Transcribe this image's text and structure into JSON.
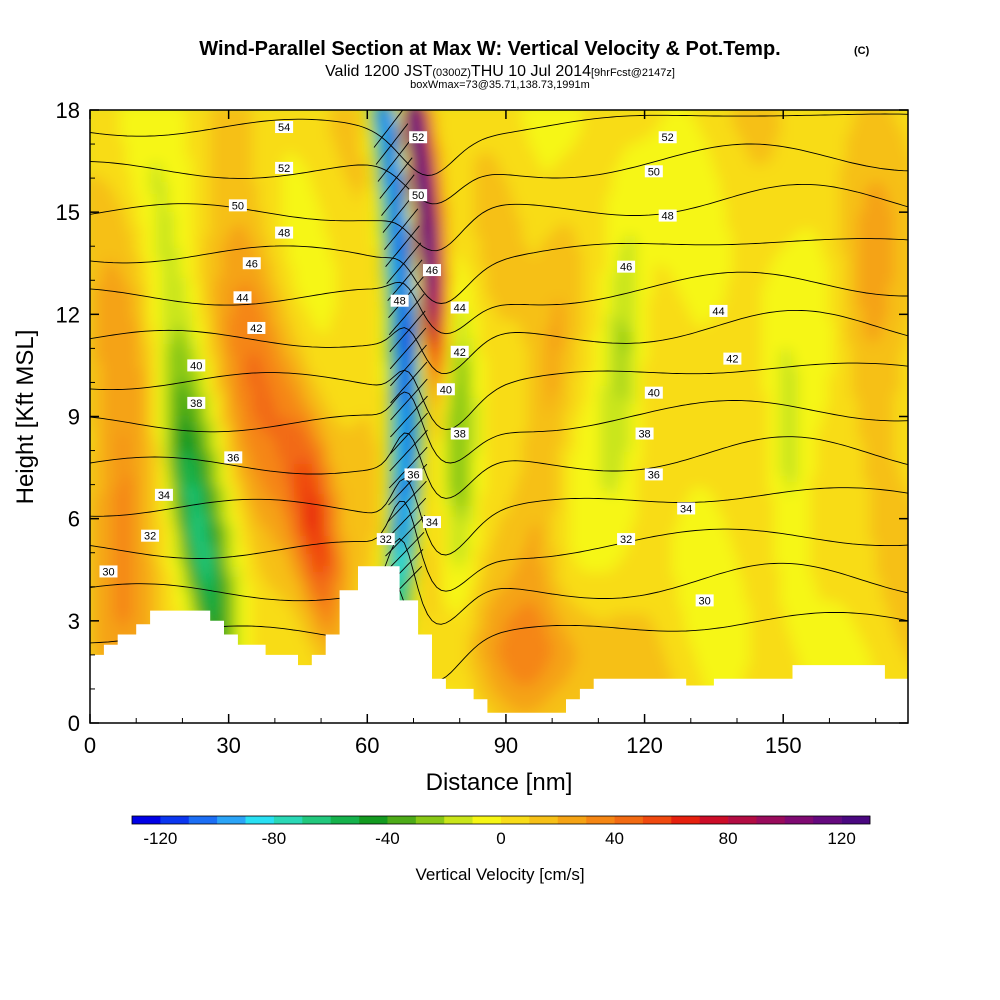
{
  "chart_data": {
    "type": "heatmap",
    "title": "Wind-Parallel Section at Max W: Vertical Velocity & Pot.Temp.",
    "title_mark": "(C)",
    "subtitle": {
      "valid": "Valid 1200 JST",
      "utc": "(0300Z)",
      "date": "THU 10 Jul 2014",
      "fcst": "[9hrFcst@2147z]"
    },
    "box_info": "boxWmax=73@35.71,138.73,1991m",
    "xlabel": "Distance [nm]",
    "ylabel": "Height [Kft MSL]",
    "xlim": [
      0,
      177
    ],
    "ylim": [
      0,
      18
    ],
    "xticks": [
      0,
      30,
      60,
      90,
      120,
      150
    ],
    "yticks": [
      0,
      3,
      6,
      9,
      12,
      15,
      18
    ],
    "colorbar": {
      "label": "Vertical Velocity [cm/s]",
      "min": -130,
      "max": 130,
      "step": 10,
      "ticks": [
        -120,
        -80,
        -40,
        0,
        40,
        80,
        120
      ],
      "colors": [
        "#0000e6",
        "#0b36f0",
        "#1c6ef5",
        "#2ba4f7",
        "#29e0f3",
        "#2ad8b6",
        "#22c87d",
        "#15b24c",
        "#139a20",
        "#4dab18",
        "#88c816",
        "#c9e51a",
        "#f6f615",
        "#f8dc18",
        "#f6c017",
        "#f5a314",
        "#f58613",
        "#f26a12",
        "#f0490f",
        "#e6200e",
        "#cc0d28",
        "#b30c43",
        "#990b5c",
        "#7f0a72",
        "#65097e",
        "#4a0880"
      ]
    },
    "theta_levels": [
      30,
      32,
      34,
      36,
      38,
      40,
      42,
      44,
      46,
      48,
      50,
      52,
      54
    ],
    "theta_labels": [
      {
        "text": "30",
        "x": 4,
        "y": 4.45
      },
      {
        "text": "32",
        "x": 13,
        "y": 5.5
      },
      {
        "text": "34",
        "x": 16,
        "y": 6.7
      },
      {
        "text": "36",
        "x": 31,
        "y": 7.8
      },
      {
        "text": "38",
        "x": 23,
        "y": 9.4
      },
      {
        "text": "40",
        "x": 23,
        "y": 10.5
      },
      {
        "text": "42",
        "x": 36,
        "y": 11.6
      },
      {
        "text": "44",
        "x": 33,
        "y": 12.5
      },
      {
        "text": "46",
        "x": 35,
        "y": 13.5
      },
      {
        "text": "48",
        "x": 42,
        "y": 14.4
      },
      {
        "text": "50",
        "x": 32,
        "y": 15.2
      },
      {
        "text": "52",
        "x": 42,
        "y": 16.3
      },
      {
        "text": "54",
        "x": 42,
        "y": 17.5
      },
      {
        "text": "32",
        "x": 64,
        "y": 5.4
      },
      {
        "text": "34",
        "x": 74,
        "y": 5.9
      },
      {
        "text": "36",
        "x": 70,
        "y": 7.3
      },
      {
        "text": "38",
        "x": 80,
        "y": 8.5
      },
      {
        "text": "40",
        "x": 77,
        "y": 9.8
      },
      {
        "text": "42",
        "x": 80,
        "y": 10.9
      },
      {
        "text": "44",
        "x": 80,
        "y": 12.2
      },
      {
        "text": "48",
        "x": 67,
        "y": 12.4
      },
      {
        "text": "46",
        "x": 74,
        "y": 13.3
      },
      {
        "text": "50",
        "x": 71,
        "y": 15.5
      },
      {
        "text": "52",
        "x": 71,
        "y": 17.2
      },
      {
        "text": "52",
        "x": 125,
        "y": 17.2
      },
      {
        "text": "50",
        "x": 122,
        "y": 16.2
      },
      {
        "text": "48",
        "x": 125,
        "y": 14.9
      },
      {
        "text": "46",
        "x": 116,
        "y": 13.4
      },
      {
        "text": "44",
        "x": 136,
        "y": 12.1
      },
      {
        "text": "42",
        "x": 139,
        "y": 10.7
      },
      {
        "text": "40",
        "x": 122,
        "y": 9.7
      },
      {
        "text": "38",
        "x": 120,
        "y": 8.5
      },
      {
        "text": "36",
        "x": 122,
        "y": 7.3
      },
      {
        "text": "34",
        "x": 129,
        "y": 6.3
      },
      {
        "text": "32",
        "x": 116,
        "y": 5.4
      },
      {
        "text": "30",
        "x": 133,
        "y": 3.6
      }
    ],
    "terrain": [
      [
        0,
        2
      ],
      [
        3,
        2
      ],
      [
        3,
        2.3
      ],
      [
        6,
        2.3
      ],
      [
        6,
        2.6
      ],
      [
        10,
        2.6
      ],
      [
        10,
        2.9
      ],
      [
        13,
        2.9
      ],
      [
        13,
        3.3
      ],
      [
        26,
        3.3
      ],
      [
        26,
        3
      ],
      [
        29,
        3
      ],
      [
        29,
        2.6
      ],
      [
        32,
        2.6
      ],
      [
        32,
        2.3
      ],
      [
        38,
        2.3
      ],
      [
        38,
        2
      ],
      [
        45,
        2
      ],
      [
        45,
        1.7
      ],
      [
        48,
        1.7
      ],
      [
        48,
        2
      ],
      [
        51,
        2
      ],
      [
        51,
        2.6
      ],
      [
        54,
        2.6
      ],
      [
        54,
        3.9
      ],
      [
        58,
        3.9
      ],
      [
        58,
        4.6
      ],
      [
        67,
        4.6
      ],
      [
        67,
        3.6
      ],
      [
        71,
        3.6
      ],
      [
        71,
        2.6
      ],
      [
        74,
        2.6
      ],
      [
        74,
        1.3
      ],
      [
        77,
        1.3
      ],
      [
        77,
        1
      ],
      [
        83,
        1
      ],
      [
        83,
        0.7
      ],
      [
        86,
        0.7
      ],
      [
        86,
        0.3
      ],
      [
        103,
        0.3
      ],
      [
        103,
        0.7
      ],
      [
        106,
        0.7
      ],
      [
        106,
        1
      ],
      [
        109,
        1
      ],
      [
        109,
        1.3
      ],
      [
        129,
        1.3
      ],
      [
        129,
        1.1
      ],
      [
        135,
        1.1
      ],
      [
        135,
        1.3
      ],
      [
        152,
        1.3
      ],
      [
        152,
        1.7
      ],
      [
        172,
        1.7
      ],
      [
        172,
        1.3
      ],
      [
        177,
        1.3
      ]
    ]
  }
}
